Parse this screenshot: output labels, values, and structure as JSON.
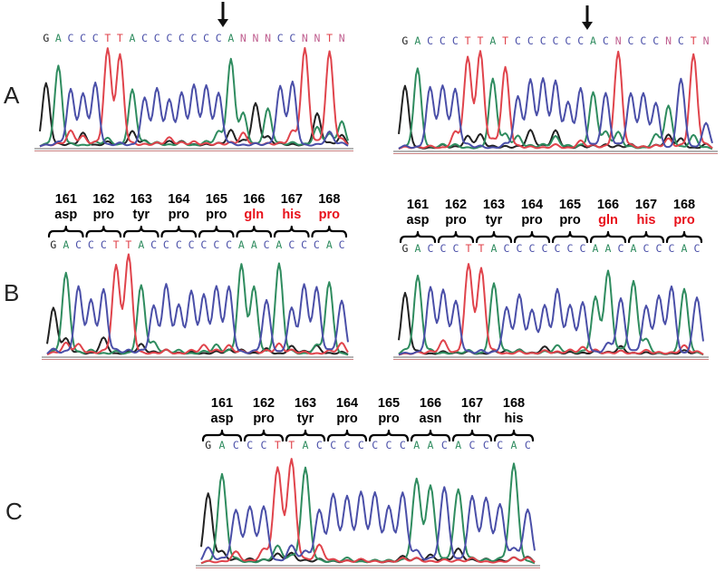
{
  "panel_letters": {
    "a": "A",
    "b": "B",
    "c": "C"
  },
  "colors": {
    "A": "#2f8c5f",
    "C": "#4a4fa8",
    "G": "#222222",
    "T": "#e0444c",
    "N": "#c06090",
    "label_normal": "#000000",
    "label_mutant": "#e8101a",
    "arrow": "#111111"
  },
  "panel_a": {
    "left": {
      "sequence": "GACCCTTACCCCCCCANNNCCNNTN",
      "arrow_marker": "down-arrow"
    },
    "right": {
      "sequence": "GACCCTTATCCCCCCACNCCCNCTN",
      "arrow_marker": "down-arrow"
    }
  },
  "panel_b": {
    "left": {
      "sequence": "GACCCTTACCCCCCCAACACCCAC",
      "codons": [
        {
          "num": "161",
          "aa": "asp",
          "mutant": false
        },
        {
          "num": "162",
          "aa": "pro",
          "mutant": false
        },
        {
          "num": "163",
          "aa": "tyr",
          "mutant": false
        },
        {
          "num": "164",
          "aa": "pro",
          "mutant": false
        },
        {
          "num": "165",
          "aa": "pro",
          "mutant": false
        },
        {
          "num": "166",
          "aa": "gln",
          "mutant": true
        },
        {
          "num": "167",
          "aa": "his",
          "mutant": true
        },
        {
          "num": "168",
          "aa": "pro",
          "mutant": true
        }
      ]
    },
    "right": {
      "sequence": "GACCCTTACCCCCCCAACACCCAC",
      "codons": [
        {
          "num": "161",
          "aa": "asp",
          "mutant": false
        },
        {
          "num": "162",
          "aa": "pro",
          "mutant": false
        },
        {
          "num": "163",
          "aa": "tyr",
          "mutant": false
        },
        {
          "num": "164",
          "aa": "pro",
          "mutant": false
        },
        {
          "num": "165",
          "aa": "pro",
          "mutant": false
        },
        {
          "num": "166",
          "aa": "gln",
          "mutant": true
        },
        {
          "num": "167",
          "aa": "his",
          "mutant": true
        },
        {
          "num": "168",
          "aa": "pro",
          "mutant": true
        }
      ]
    }
  },
  "panel_c": {
    "sequence": "GACCCTTACCCCCCCAACACCCAC",
    "codons": [
      {
        "num": "161",
        "aa": "asp",
        "mutant": false
      },
      {
        "num": "162",
        "aa": "pro",
        "mutant": false
      },
      {
        "num": "163",
        "aa": "tyr",
        "mutant": false
      },
      {
        "num": "164",
        "aa": "pro",
        "mutant": false
      },
      {
        "num": "165",
        "aa": "pro",
        "mutant": false
      },
      {
        "num": "166",
        "aa": "asn",
        "mutant": false
      },
      {
        "num": "167",
        "aa": "thr",
        "mutant": false
      },
      {
        "num": "168",
        "aa": "his",
        "mutant": false
      }
    ]
  }
}
